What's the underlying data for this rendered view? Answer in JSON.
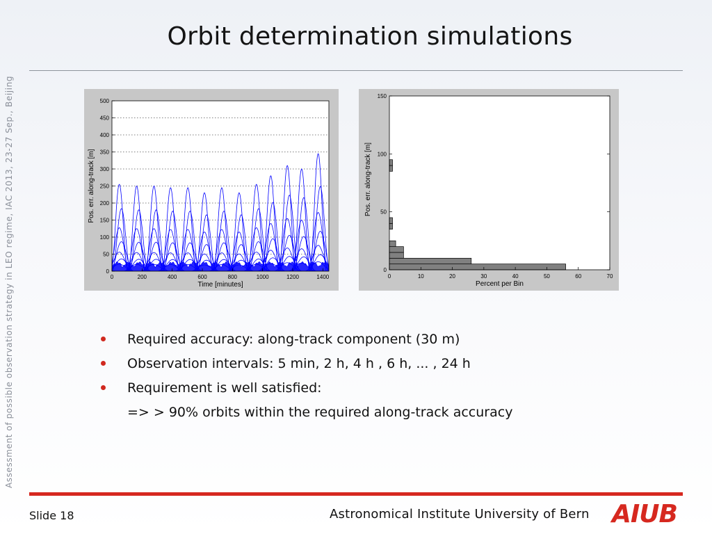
{
  "slide": {
    "side_text": "Assessment of possible observation strategy in LEO regime, IAC 2013, 23-27 Sep., Beijing",
    "title": "Orbit determination simulations",
    "bullets": [
      "Required accuracy: along-track component (30 m)",
      "Observation intervals: 5 min, 2 h, 4 h , 6 h, ... , 24 h",
      "Requirement is well satisfied:"
    ],
    "bullet_continuation": "=> > 90% orbits within the required along-track accuracy",
    "footer": {
      "slide_label": "Slide 18",
      "institute": "Astronomical Institute University of Bern",
      "logo_text": "AIUB"
    }
  },
  "colors": {
    "accent_red": "#d6281f",
    "series_blue": "#0000ff",
    "bar_gray": "#808080"
  },
  "chart_data": [
    {
      "type": "line",
      "xlabel": "Time [minutes]",
      "ylabel": "Pos. err. along-track [m]",
      "xlim": [
        0,
        1440
      ],
      "ylim": [
        0,
        500
      ],
      "xticks": [
        0,
        200,
        400,
        600,
        800,
        1000,
        1200,
        1400
      ],
      "yticks": [
        0,
        50,
        100,
        150,
        200,
        250,
        300,
        350,
        400,
        450,
        500
      ],
      "grid": "dotted-horizontal",
      "series_peaks": [
        {
          "x": 55,
          "y": 255
        },
        {
          "x": 170,
          "y": 250
        },
        {
          "x": 285,
          "y": 250
        },
        {
          "x": 395,
          "y": 245
        },
        {
          "x": 510,
          "y": 245
        },
        {
          "x": 620,
          "y": 230
        },
        {
          "x": 735,
          "y": 245
        },
        {
          "x": 850,
          "y": 230
        },
        {
          "x": 965,
          "y": 255
        },
        {
          "x": 1060,
          "y": 280
        },
        {
          "x": 1170,
          "y": 310
        },
        {
          "x": 1265,
          "y": 300
        },
        {
          "x": 1375,
          "y": 345
        }
      ]
    },
    {
      "type": "bar",
      "orientation": "horizontal",
      "xlabel": "Percent per Bin",
      "ylabel": "Pos. err. along-track [m]",
      "xlim": [
        0,
        70
      ],
      "ylim": [
        0,
        150
      ],
      "xticks": [
        0,
        10,
        20,
        30,
        40,
        50,
        60,
        70
      ],
      "yticks": [
        0,
        50,
        100,
        150
      ],
      "bins": [
        {
          "y0": 0,
          "y1": 5,
          "value": 56
        },
        {
          "y0": 5,
          "y1": 10,
          "value": 26
        },
        {
          "y0": 10,
          "y1": 15,
          "value": 4.5
        },
        {
          "y0": 15,
          "y1": 20,
          "value": 4.5
        },
        {
          "y0": 20,
          "y1": 25,
          "value": 2
        },
        {
          "y0": 35,
          "y1": 40,
          "value": 1
        },
        {
          "y0": 40,
          "y1": 45,
          "value": 1
        },
        {
          "y0": 85,
          "y1": 90,
          "value": 1
        },
        {
          "y0": 90,
          "y1": 95,
          "value": 1
        }
      ]
    }
  ]
}
